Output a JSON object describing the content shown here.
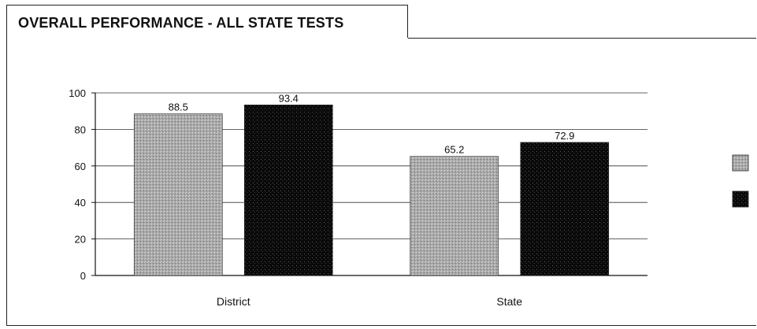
{
  "chart_data": {
    "type": "bar",
    "title": "OVERALL PERFORMANCE - ALL STATE TESTS",
    "categories": [
      "District",
      "State"
    ],
    "series": [
      {
        "values": [
          88.5,
          65.2
        ],
        "color": "#9a9a9a"
      },
      {
        "values": [
          93.4,
          72.9
        ],
        "color": "#0d0d0d"
      }
    ],
    "ylim": [
      0,
      100
    ],
    "yticks": [
      0,
      20,
      40,
      60,
      80,
      100
    ],
    "grid": true,
    "legend": "right"
  }
}
